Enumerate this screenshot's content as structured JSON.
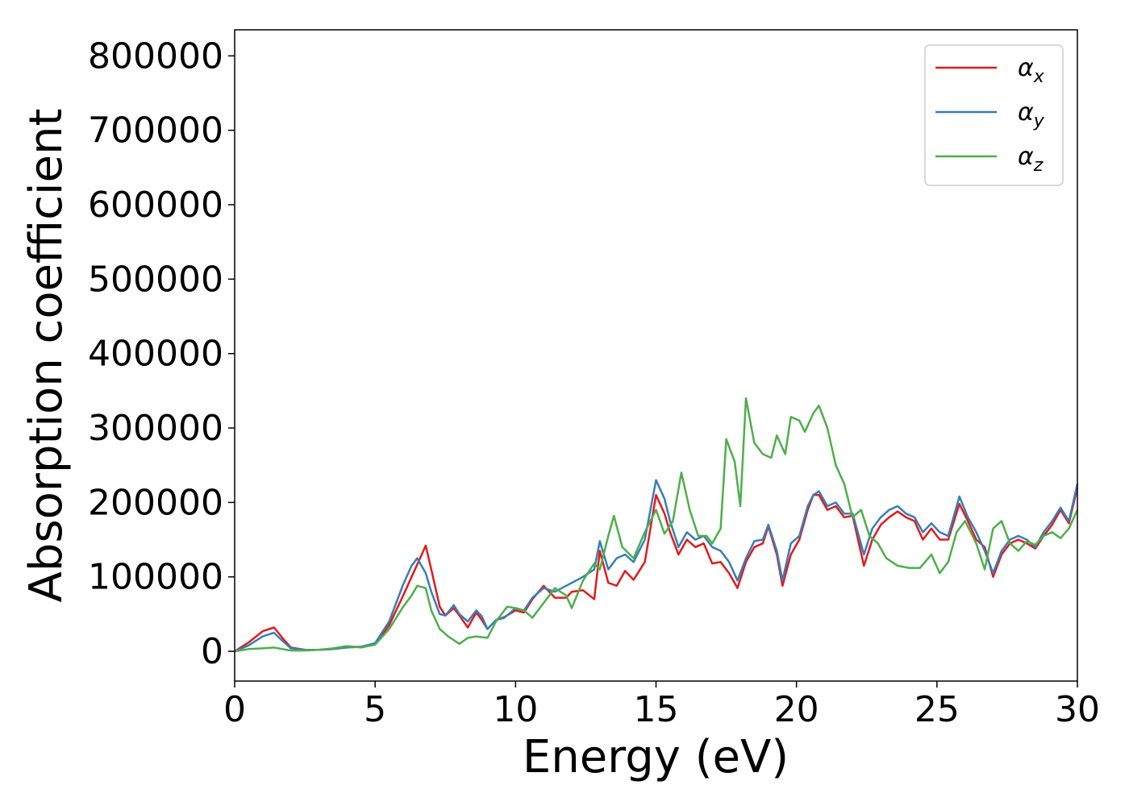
{
  "chart_data": {
    "type": "line",
    "title": "",
    "xlabel": "Energy (eV)",
    "ylabel": "Absorption coefficient",
    "xlim": [
      0,
      30
    ],
    "ylim": [
      -40000,
      835000
    ],
    "xticks": [
      0,
      5,
      10,
      15,
      20,
      25,
      30
    ],
    "xtick_labels": [
      "0",
      "5",
      "10",
      "15",
      "20",
      "25",
      "30"
    ],
    "yticks": [
      0,
      100000,
      200000,
      300000,
      400000,
      500000,
      600000,
      700000,
      800000
    ],
    "ytick_labels": [
      "0",
      "100000",
      "200000",
      "300000",
      "400000",
      "500000",
      "600000",
      "700000",
      "800000"
    ],
    "grid": false,
    "legend_position": "top-right",
    "series": [
      {
        "name": "αx",
        "legend_base": "α",
        "legend_sub": "x",
        "color": "#e41a1c",
        "points": [
          [
            0,
            0
          ],
          [
            0.5,
            12000
          ],
          [
            1.0,
            27000
          ],
          [
            1.4,
            32000
          ],
          [
            1.7,
            18000
          ],
          [
            2.0,
            5000
          ],
          [
            2.5,
            2000
          ],
          [
            3.0,
            2000
          ],
          [
            3.5,
            3000
          ],
          [
            4.0,
            6000
          ],
          [
            4.5,
            6000
          ],
          [
            5.0,
            10000
          ],
          [
            5.5,
            35000
          ],
          [
            6.0,
            75000
          ],
          [
            6.3,
            100000
          ],
          [
            6.6,
            125000
          ],
          [
            6.8,
            142000
          ],
          [
            7.0,
            110000
          ],
          [
            7.3,
            60000
          ],
          [
            7.5,
            48000
          ],
          [
            7.8,
            58000
          ],
          [
            8.0,
            48000
          ],
          [
            8.3,
            32000
          ],
          [
            8.6,
            52000
          ],
          [
            8.8,
            42000
          ],
          [
            9.0,
            30000
          ],
          [
            9.3,
            42000
          ],
          [
            9.6,
            46000
          ],
          [
            10.0,
            55000
          ],
          [
            10.3,
            52000
          ],
          [
            10.6,
            70000
          ],
          [
            11.0,
            88000
          ],
          [
            11.4,
            72000
          ],
          [
            11.8,
            72000
          ],
          [
            12.0,
            80000
          ],
          [
            12.4,
            82000
          ],
          [
            12.8,
            70000
          ],
          [
            13.0,
            135000
          ],
          [
            13.3,
            92000
          ],
          [
            13.6,
            88000
          ],
          [
            13.9,
            108000
          ],
          [
            14.2,
            96000
          ],
          [
            14.6,
            120000
          ],
          [
            15.0,
            210000
          ],
          [
            15.3,
            185000
          ],
          [
            15.5,
            160000
          ],
          [
            15.8,
            130000
          ],
          [
            16.1,
            150000
          ],
          [
            16.4,
            140000
          ],
          [
            16.7,
            145000
          ],
          [
            17.0,
            118000
          ],
          [
            17.3,
            120000
          ],
          [
            17.6,
            105000
          ],
          [
            17.9,
            85000
          ],
          [
            18.2,
            120000
          ],
          [
            18.5,
            140000
          ],
          [
            18.8,
            145000
          ],
          [
            19.0,
            168000
          ],
          [
            19.3,
            130000
          ],
          [
            19.5,
            88000
          ],
          [
            19.8,
            130000
          ],
          [
            20.1,
            150000
          ],
          [
            20.4,
            190000
          ],
          [
            20.6,
            210000
          ],
          [
            20.8,
            210000
          ],
          [
            21.1,
            190000
          ],
          [
            21.4,
            195000
          ],
          [
            21.7,
            180000
          ],
          [
            22.0,
            182000
          ],
          [
            22.4,
            115000
          ],
          [
            22.7,
            150000
          ],
          [
            23.0,
            170000
          ],
          [
            23.3,
            180000
          ],
          [
            23.6,
            188000
          ],
          [
            23.9,
            180000
          ],
          [
            24.2,
            175000
          ],
          [
            24.5,
            150000
          ],
          [
            24.8,
            165000
          ],
          [
            25.1,
            150000
          ],
          [
            25.4,
            150000
          ],
          [
            25.8,
            198000
          ],
          [
            26.1,
            175000
          ],
          [
            26.4,
            150000
          ],
          [
            26.7,
            140000
          ],
          [
            27.0,
            100000
          ],
          [
            27.3,
            130000
          ],
          [
            27.6,
            145000
          ],
          [
            27.9,
            150000
          ],
          [
            28.2,
            145000
          ],
          [
            28.5,
            138000
          ],
          [
            28.8,
            155000
          ],
          [
            29.1,
            170000
          ],
          [
            29.4,
            190000
          ],
          [
            29.7,
            172000
          ],
          [
            30.0,
            220000
          ]
        ]
      },
      {
        "name": "αy",
        "legend_base": "α",
        "legend_sub": "y",
        "color": "#377eb8",
        "points": [
          [
            0,
            0
          ],
          [
            0.5,
            8000
          ],
          [
            1.0,
            20000
          ],
          [
            1.4,
            25000
          ],
          [
            1.7,
            14000
          ],
          [
            2.0,
            4000
          ],
          [
            2.5,
            2000
          ],
          [
            3.0,
            2000
          ],
          [
            3.5,
            3000
          ],
          [
            4.0,
            5000
          ],
          [
            4.5,
            6000
          ],
          [
            5.0,
            11000
          ],
          [
            5.5,
            40000
          ],
          [
            6.0,
            90000
          ],
          [
            6.3,
            115000
          ],
          [
            6.5,
            125000
          ],
          [
            6.8,
            105000
          ],
          [
            7.0,
            80000
          ],
          [
            7.3,
            50000
          ],
          [
            7.5,
            48000
          ],
          [
            7.8,
            62000
          ],
          [
            8.0,
            50000
          ],
          [
            8.3,
            40000
          ],
          [
            8.6,
            55000
          ],
          [
            8.8,
            47000
          ],
          [
            9.0,
            30000
          ],
          [
            9.3,
            42000
          ],
          [
            9.6,
            45000
          ],
          [
            10.0,
            58000
          ],
          [
            10.3,
            55000
          ],
          [
            10.6,
            72000
          ],
          [
            11.0,
            85000
          ],
          [
            11.4,
            80000
          ],
          [
            11.8,
            88000
          ],
          [
            12.0,
            92000
          ],
          [
            12.4,
            100000
          ],
          [
            12.8,
            110000
          ],
          [
            13.0,
            148000
          ],
          [
            13.3,
            110000
          ],
          [
            13.6,
            125000
          ],
          [
            13.9,
            130000
          ],
          [
            14.2,
            120000
          ],
          [
            14.6,
            150000
          ],
          [
            15.0,
            230000
          ],
          [
            15.3,
            205000
          ],
          [
            15.5,
            175000
          ],
          [
            15.8,
            140000
          ],
          [
            16.1,
            160000
          ],
          [
            16.4,
            150000
          ],
          [
            16.7,
            155000
          ],
          [
            17.0,
            140000
          ],
          [
            17.3,
            135000
          ],
          [
            17.6,
            120000
          ],
          [
            17.9,
            95000
          ],
          [
            18.2,
            125000
          ],
          [
            18.5,
            148000
          ],
          [
            18.8,
            150000
          ],
          [
            19.0,
            170000
          ],
          [
            19.3,
            135000
          ],
          [
            19.5,
            95000
          ],
          [
            19.8,
            145000
          ],
          [
            20.1,
            155000
          ],
          [
            20.4,
            195000
          ],
          [
            20.6,
            210000
          ],
          [
            20.8,
            215000
          ],
          [
            21.1,
            195000
          ],
          [
            21.4,
            200000
          ],
          [
            21.7,
            185000
          ],
          [
            22.0,
            185000
          ],
          [
            22.4,
            130000
          ],
          [
            22.7,
            165000
          ],
          [
            23.0,
            180000
          ],
          [
            23.3,
            190000
          ],
          [
            23.6,
            195000
          ],
          [
            23.9,
            185000
          ],
          [
            24.2,
            180000
          ],
          [
            24.5,
            160000
          ],
          [
            24.8,
            172000
          ],
          [
            25.1,
            160000
          ],
          [
            25.4,
            155000
          ],
          [
            25.8,
            208000
          ],
          [
            26.1,
            180000
          ],
          [
            26.4,
            160000
          ],
          [
            26.7,
            135000
          ],
          [
            27.0,
            105000
          ],
          [
            27.3,
            135000
          ],
          [
            27.6,
            150000
          ],
          [
            27.9,
            155000
          ],
          [
            28.2,
            150000
          ],
          [
            28.5,
            140000
          ],
          [
            28.8,
            160000
          ],
          [
            29.1,
            175000
          ],
          [
            29.4,
            193000
          ],
          [
            29.7,
            175000
          ],
          [
            30.0,
            225000
          ]
        ]
      },
      {
        "name": "αz",
        "legend_base": "α",
        "legend_sub": "z",
        "color": "#4daf4a",
        "points": [
          [
            0,
            0
          ],
          [
            0.5,
            3000
          ],
          [
            1.0,
            4000
          ],
          [
            1.4,
            5000
          ],
          [
            1.7,
            3000
          ],
          [
            2.0,
            1000
          ],
          [
            2.5,
            1000
          ],
          [
            3.0,
            2000
          ],
          [
            3.5,
            4000
          ],
          [
            4.0,
            7000
          ],
          [
            4.5,
            5000
          ],
          [
            5.0,
            9000
          ],
          [
            5.5,
            30000
          ],
          [
            6.0,
            60000
          ],
          [
            6.3,
            75000
          ],
          [
            6.5,
            88000
          ],
          [
            6.8,
            85000
          ],
          [
            7.0,
            55000
          ],
          [
            7.3,
            30000
          ],
          [
            7.6,
            20000
          ],
          [
            8.0,
            10000
          ],
          [
            8.3,
            18000
          ],
          [
            8.6,
            20000
          ],
          [
            9.0,
            18000
          ],
          [
            9.3,
            40000
          ],
          [
            9.7,
            60000
          ],
          [
            10.0,
            58000
          ],
          [
            10.3,
            55000
          ],
          [
            10.6,
            45000
          ],
          [
            11.0,
            65000
          ],
          [
            11.4,
            85000
          ],
          [
            11.8,
            75000
          ],
          [
            12.0,
            58000
          ],
          [
            12.4,
            95000
          ],
          [
            12.8,
            118000
          ],
          [
            13.0,
            110000
          ],
          [
            13.3,
            155000
          ],
          [
            13.5,
            182000
          ],
          [
            13.8,
            140000
          ],
          [
            14.2,
            125000
          ],
          [
            14.6,
            160000
          ],
          [
            15.0,
            190000
          ],
          [
            15.3,
            158000
          ],
          [
            15.6,
            175000
          ],
          [
            15.9,
            240000
          ],
          [
            16.2,
            190000
          ],
          [
            16.5,
            155000
          ],
          [
            16.8,
            155000
          ],
          [
            17.0,
            145000
          ],
          [
            17.3,
            165000
          ],
          [
            17.5,
            285000
          ],
          [
            17.8,
            255000
          ],
          [
            18.0,
            195000
          ],
          [
            18.2,
            340000
          ],
          [
            18.5,
            280000
          ],
          [
            18.8,
            265000
          ],
          [
            19.1,
            260000
          ],
          [
            19.3,
            290000
          ],
          [
            19.6,
            265000
          ],
          [
            19.8,
            315000
          ],
          [
            20.1,
            310000
          ],
          [
            20.3,
            295000
          ],
          [
            20.6,
            320000
          ],
          [
            20.8,
            330000
          ],
          [
            21.1,
            300000
          ],
          [
            21.4,
            250000
          ],
          [
            21.7,
            225000
          ],
          [
            22.0,
            180000
          ],
          [
            22.3,
            190000
          ],
          [
            22.6,
            155000
          ],
          [
            22.9,
            145000
          ],
          [
            23.2,
            125000
          ],
          [
            23.6,
            115000
          ],
          [
            24.0,
            112000
          ],
          [
            24.4,
            112000
          ],
          [
            24.8,
            130000
          ],
          [
            25.1,
            105000
          ],
          [
            25.4,
            120000
          ],
          [
            25.7,
            160000
          ],
          [
            26.0,
            175000
          ],
          [
            26.4,
            145000
          ],
          [
            26.7,
            110000
          ],
          [
            27.0,
            165000
          ],
          [
            27.3,
            175000
          ],
          [
            27.6,
            145000
          ],
          [
            27.9,
            135000
          ],
          [
            28.2,
            148000
          ],
          [
            28.5,
            143000
          ],
          [
            28.8,
            155000
          ],
          [
            29.1,
            160000
          ],
          [
            29.4,
            152000
          ],
          [
            29.7,
            165000
          ],
          [
            30.0,
            190000
          ]
        ]
      }
    ]
  }
}
